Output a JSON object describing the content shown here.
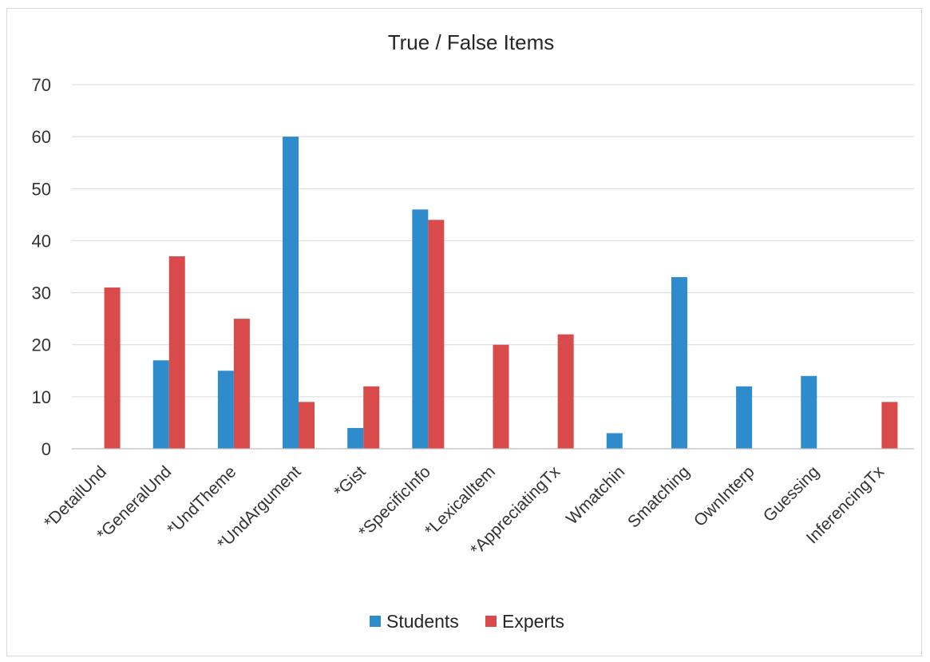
{
  "chart_data": {
    "type": "bar",
    "title": "True / False Items",
    "xlabel": "",
    "ylabel": "",
    "ylim": [
      0,
      70
    ],
    "yticks": [
      0,
      10,
      20,
      30,
      40,
      50,
      60,
      70
    ],
    "grid": true,
    "legend_position": "bottom",
    "categories": [
      "*DetailUnd",
      "*GeneralUnd",
      "*UndTheme",
      "*UndArgument",
      "*Gist",
      "*SpecificInfo",
      "*LexicalItem",
      "*AppreciatingTx",
      "Wmatchin",
      "Smatching",
      "OwnInterp",
      "Guessing",
      "InferencingTx"
    ],
    "series": [
      {
        "name": "Students",
        "color": "#2e8bcc",
        "values": [
          0,
          17,
          15,
          60,
          4,
          46,
          0,
          0,
          3,
          33,
          12,
          14,
          0
        ]
      },
      {
        "name": "Experts",
        "color": "#d94a4a",
        "values": [
          31,
          37,
          25,
          9,
          12,
          44,
          20,
          22,
          0,
          0,
          0,
          0,
          9
        ]
      }
    ]
  }
}
